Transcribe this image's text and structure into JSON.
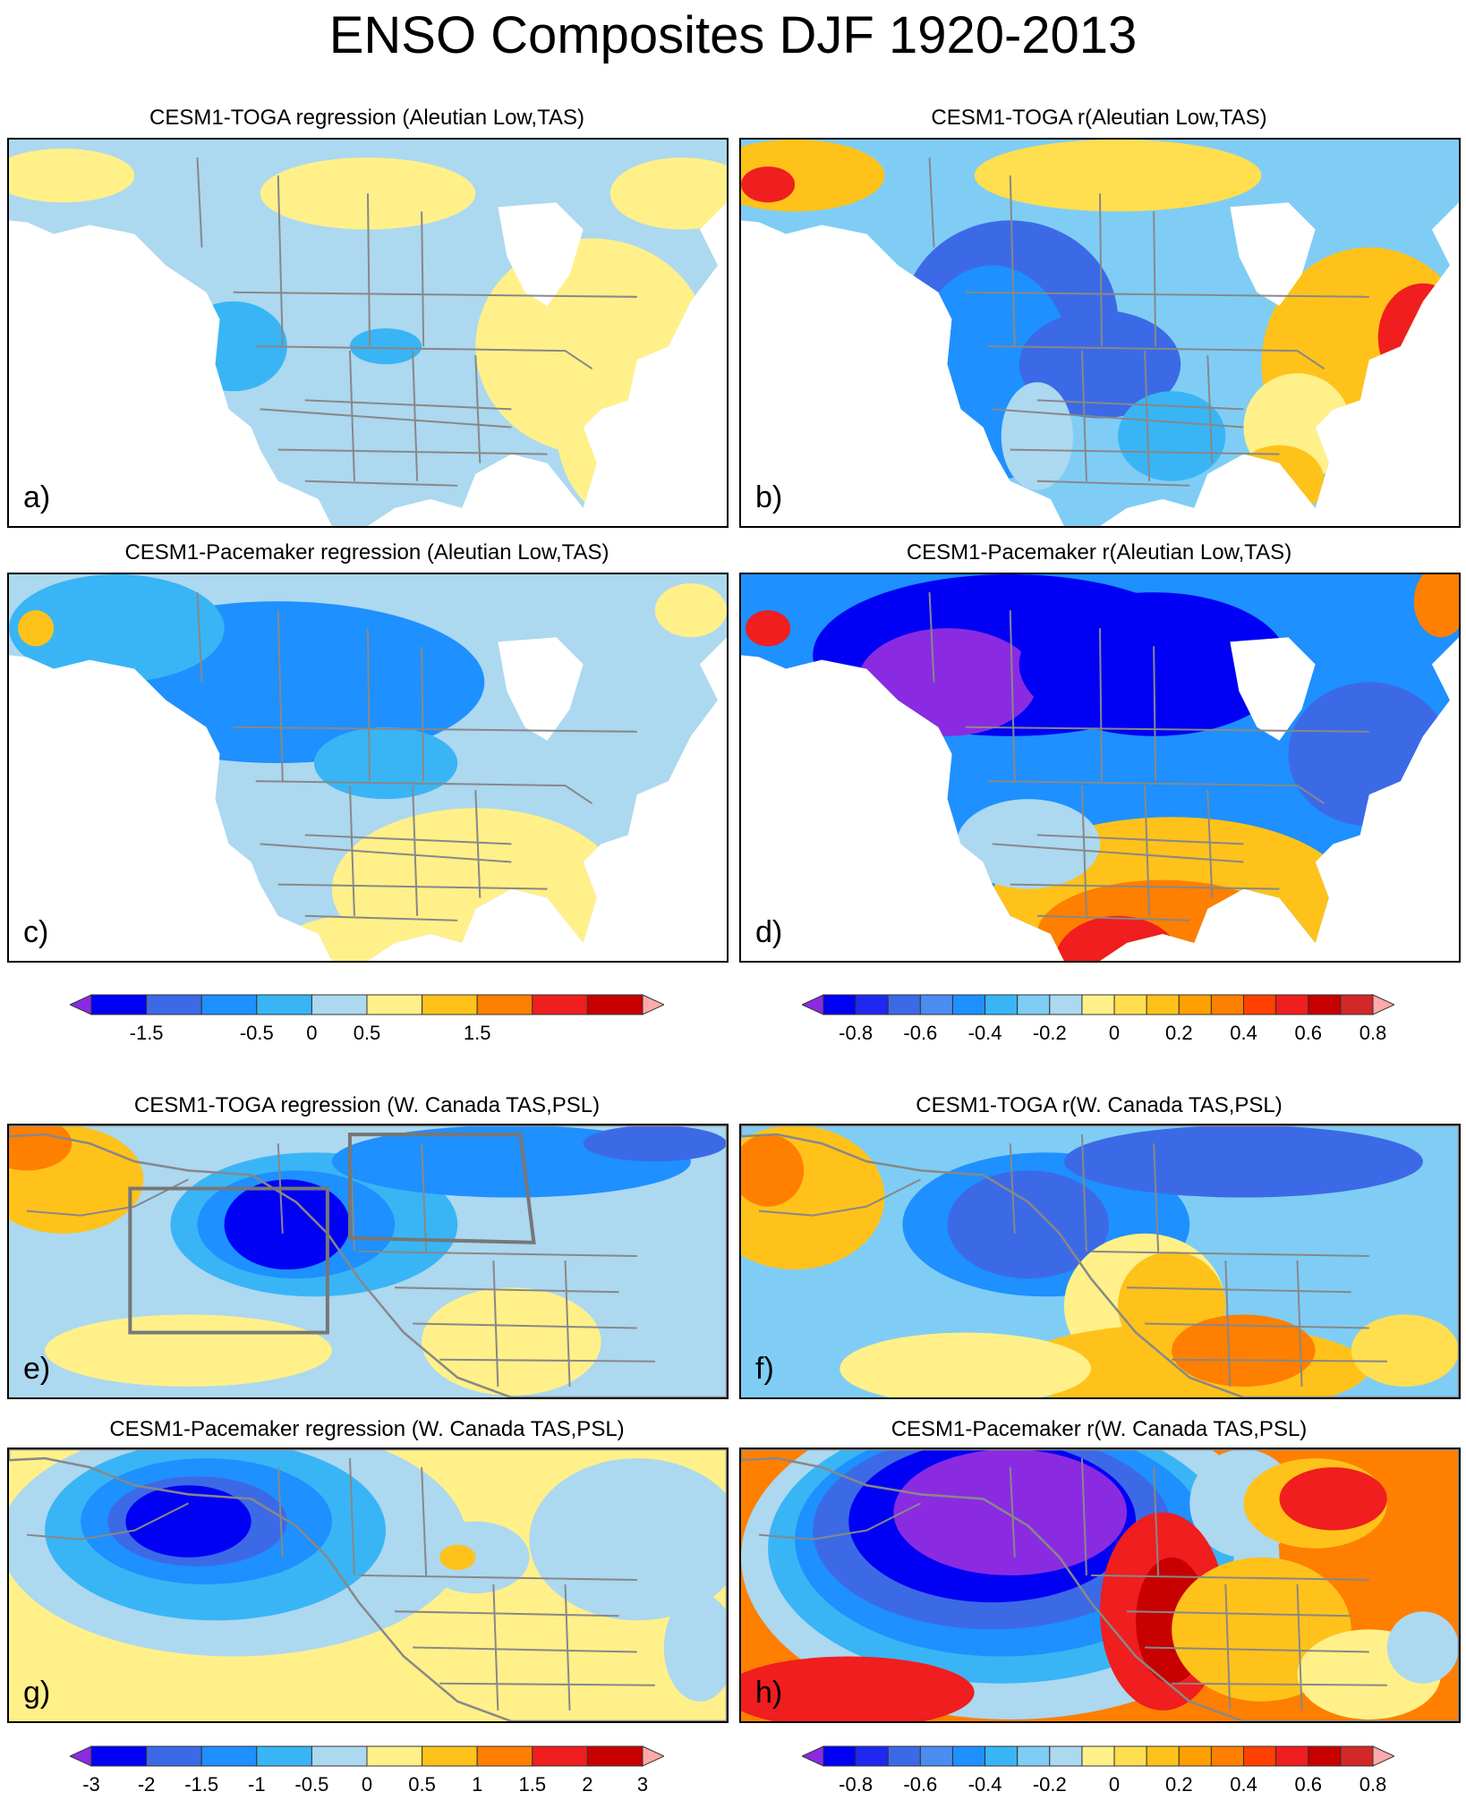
{
  "title": "ENSO Composites DJF 1920-2013",
  "panels": [
    {
      "id": "a",
      "letter": "a)",
      "title": "CESM1-TOGA regression (Aleutian Low,TAS)",
      "region": "north-america",
      "pattern": "toga-tas-regression"
    },
    {
      "id": "b",
      "letter": "b)",
      "title": "CESM1-TOGA r(Aleutian Low,TAS)",
      "region": "north-america",
      "pattern": "toga-tas-correlation"
    },
    {
      "id": "c",
      "letter": "c)",
      "title": "CESM1-Pacemaker regression (Aleutian Low,TAS)",
      "region": "north-america",
      "pattern": "pacemaker-tas-regression"
    },
    {
      "id": "d",
      "letter": "d)",
      "title": "CESM1-Pacemaker r(Aleutian Low,TAS)",
      "region": "north-america",
      "pattern": "pacemaker-tas-correlation"
    },
    {
      "id": "e",
      "letter": "e)",
      "title": "CESM1-TOGA regression (W. Canada TAS,PSL)",
      "region": "north-pacific",
      "pattern": "toga-psl-regression"
    },
    {
      "id": "f",
      "letter": "f)",
      "title": "CESM1-TOGA r(W. Canada TAS,PSL)",
      "region": "north-pacific",
      "pattern": "toga-psl-correlation"
    },
    {
      "id": "g",
      "letter": "g)",
      "title": "CESM1-Pacemaker regression (W. Canada TAS,PSL)",
      "region": "north-pacific",
      "pattern": "pacemaker-psl-regression"
    },
    {
      "id": "h",
      "letter": "h)",
      "title": "CESM1-Pacemaker r(W. Canada TAS,PSL)",
      "region": "north-pacific",
      "pattern": "pacemaker-psl-correlation"
    }
  ],
  "colorbars": [
    {
      "id": "cb-tas-regression",
      "labels": [
        "-1.5",
        "-0.5",
        "0",
        "0.5",
        "1.5"
      ],
      "colors": [
        "#8a2be2",
        "#0000f5",
        "#3c6ae6",
        "#1e90ff",
        "#39b5f5",
        "#acd8f0",
        "#fff08a",
        "#ffc21a",
        "#ff7f00",
        "#f01e1e",
        "#c80000",
        "#ffaaaa"
      ]
    },
    {
      "id": "cb-tas-correlation",
      "labels": [
        "-0.8",
        "-0.6",
        "-0.4",
        "-0.2",
        "0",
        "0.2",
        "0.4",
        "0.6",
        "0.8"
      ],
      "colors": [
        "#8a2be2",
        "#0000f5",
        "#1e28f0",
        "#3c6ae6",
        "#4a8cf0",
        "#1e90ff",
        "#39b5f5",
        "#7fcdf5",
        "#acd8f0",
        "#fff08a",
        "#ffde50",
        "#ffc21a",
        "#ffa000",
        "#ff7f00",
        "#ff4000",
        "#f01e1e",
        "#c80000",
        "#d22828",
        "#ffaaaa"
      ]
    },
    {
      "id": "cb-psl-regression",
      "labels": [
        "-3",
        "-2",
        "-1.5",
        "-1",
        "-0.5",
        "0",
        "0.5",
        "1",
        "1.5",
        "2",
        "3"
      ],
      "colors": [
        "#8a2be2",
        "#0000f5",
        "#3c6ae6",
        "#1e90ff",
        "#39b5f5",
        "#acd8f0",
        "#fff08a",
        "#ffc21a",
        "#ff7f00",
        "#f01e1e",
        "#c80000",
        "#ffaaaa"
      ]
    },
    {
      "id": "cb-psl-correlation",
      "labels": [
        "-0.8",
        "-0.6",
        "-0.4",
        "-0.2",
        "0",
        "0.2",
        "0.4",
        "0.6",
        "0.8"
      ],
      "colors": [
        "#8a2be2",
        "#0000f5",
        "#1e28f0",
        "#3c6ae6",
        "#4a8cf0",
        "#1e90ff",
        "#39b5f5",
        "#7fcdf5",
        "#acd8f0",
        "#fff08a",
        "#ffde50",
        "#ffc21a",
        "#ffa000",
        "#ff7f00",
        "#ff4000",
        "#f01e1e",
        "#c80000",
        "#d22828",
        "#ffaaaa"
      ]
    }
  ]
}
